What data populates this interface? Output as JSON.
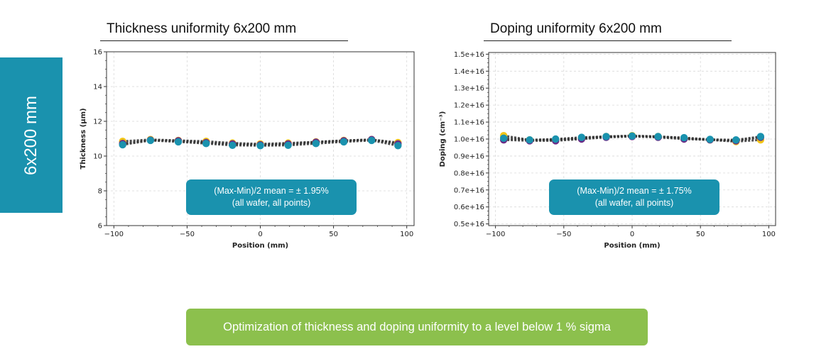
{
  "side_label": "6x200 mm",
  "colors": {
    "teal": "#1a92ae",
    "green": "#8cc04d",
    "series": [
      "#f2c518",
      "#6b2a86",
      "#1a92ae"
    ],
    "trend": "#333333"
  },
  "charts": [
    {
      "heading": "Thickness uniformity 6x200 mm",
      "metric_line1": "(Max-Min)/2 mean = ± 1.95%",
      "metric_line2": "(all wafer, all points)",
      "xlabel": "Position (mm)",
      "ylabel": "Thickness (µm)"
    },
    {
      "heading": "Doping uniformity 6x200 mm",
      "metric_line1": "(Max-Min)/2 mean = ± 1.75%",
      "metric_line2": "(all wafer, all points)",
      "xlabel": "Position (mm)",
      "ylabel": "Doping (cm⁻³)"
    }
  ],
  "chart_data": [
    {
      "type": "scatter",
      "title": "",
      "xlabel": "Position (mm)",
      "ylabel": "Thickness (µm)",
      "xlim": [
        -105,
        105
      ],
      "ylim": [
        6,
        16
      ],
      "xticks": [
        -100,
        -50,
        0,
        50,
        100
      ],
      "xtick_labels": [
        "−100",
        "−50",
        "0",
        "50",
        "100"
      ],
      "yticks": [
        6,
        8,
        10,
        12,
        14,
        16
      ],
      "ytick_labels": [
        "6",
        "8",
        "10",
        "12",
        "14",
        "16"
      ],
      "grid": true,
      "x": [
        -94,
        -75,
        -56,
        -37,
        -19,
        0,
        19,
        38,
        57,
        76,
        94
      ],
      "series": [
        {
          "values": [
            10.85,
            10.95,
            10.9,
            10.85,
            10.75,
            10.7,
            10.75,
            10.82,
            10.9,
            10.95,
            10.78
          ]
        },
        {
          "values": [
            10.72,
            10.92,
            10.88,
            10.78,
            10.7,
            10.65,
            10.7,
            10.8,
            10.88,
            10.95,
            10.7
          ]
        },
        {
          "values": [
            10.65,
            10.9,
            10.82,
            10.72,
            10.62,
            10.6,
            10.62,
            10.72,
            10.82,
            10.9,
            10.6
          ]
        }
      ]
    },
    {
      "type": "scatter",
      "title": "",
      "xlabel": "Position (mm)",
      "ylabel": "Doping (cm⁻³)",
      "xlim": [
        -105,
        105
      ],
      "ylim": [
        4900000000000000.0,
        1.51e+16
      ],
      "xticks": [
        -100,
        -50,
        0,
        50,
        100
      ],
      "xtick_labels": [
        "−100",
        "−50",
        "0",
        "50",
        "100"
      ],
      "yticks": [
        5000000000000000.0,
        6000000000000000.0,
        7000000000000000.0,
        8000000000000000.0,
        9000000000000000.0,
        1e+16,
        1.1e+16,
        1.2e+16,
        1.3e+16,
        1.4e+16,
        1.5e+16
      ],
      "ytick_labels": [
        "0.5e+16",
        "0.6e+16",
        "0.7e+16",
        "0.8e+16",
        "0.9e+16",
        "1.0e+16",
        "1.1e+16",
        "1.2e+16",
        "1.3e+16",
        "1.4e+16",
        "1.5e+16"
      ],
      "grid": true,
      "x": [
        -94,
        -75,
        -56,
        -37,
        -19,
        0,
        19,
        38,
        57,
        76,
        94
      ],
      "series": [
        {
          "values": [
            1.02e+16,
            9950000000000000.0,
            9950000000000000.0,
            1.005e+16,
            1.015e+16,
            1.02e+16,
            1.015e+16,
            1.005e+16,
            9950000000000000.0,
            9850000000000000.0,
            9950000000000000.0
          ]
        },
        {
          "values": [
            9950000000000000.0,
            9900000000000000.0,
            9900000000000000.0,
            1e+16,
            1.01e+16,
            1.015e+16,
            1.01e+16,
            1e+16,
            9950000000000000.0,
            9900000000000000.0,
            1.01e+16
          ]
        },
        {
          "values": [
            1.005e+16,
            9950000000000000.0,
            1e+16,
            1.01e+16,
            1.015e+16,
            1.018e+16,
            1.015e+16,
            1.008e+16,
            9980000000000000.0,
            9950000000000000.0,
            1.015e+16
          ]
        }
      ]
    }
  ],
  "banner": "Optimization of thickness and doping uniformity to a level below 1 % sigma"
}
